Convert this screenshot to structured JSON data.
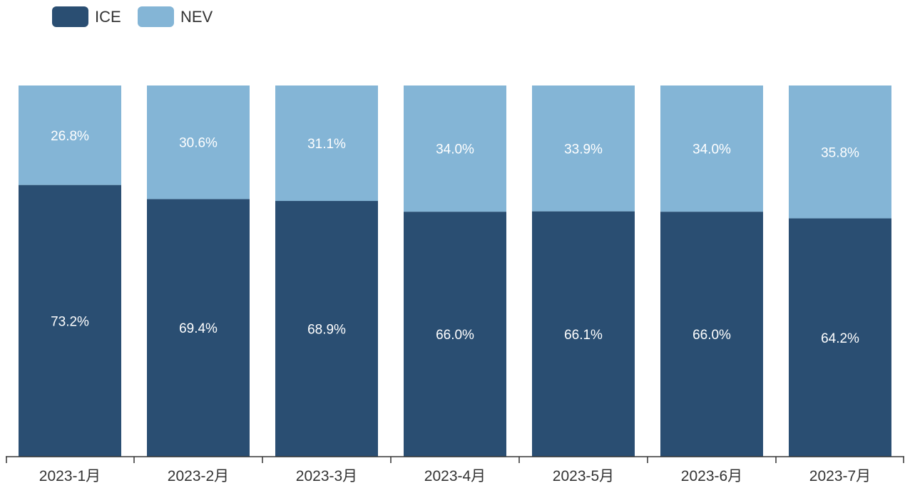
{
  "chart_data": {
    "type": "bar",
    "stacked": true,
    "normalized": true,
    "categories": [
      "2023-1月",
      "2023-2月",
      "2023-3月",
      "2023-4月",
      "2023-5月",
      "2023-6月",
      "2023-7月"
    ],
    "series": [
      {
        "name": "ICE",
        "color": "#2a4e72",
        "values": [
          73.2,
          69.4,
          68.9,
          66.0,
          66.1,
          66.0,
          64.2
        ],
        "labels": [
          "73.2%",
          "69.4%",
          "68.9%",
          "66.0%",
          "66.1%",
          "66.0%",
          "64.2%"
        ]
      },
      {
        "name": "NEV",
        "color": "#84b5d6",
        "values": [
          26.8,
          30.6,
          31.1,
          34.0,
          33.9,
          34.0,
          35.8
        ],
        "labels": [
          "26.8%",
          "30.6%",
          "31.1%",
          "34.0%",
          "33.9%",
          "34.0%",
          "35.8%"
        ]
      }
    ],
    "ylim": [
      0,
      100
    ],
    "grid": false,
    "legend_position": "top-left"
  }
}
